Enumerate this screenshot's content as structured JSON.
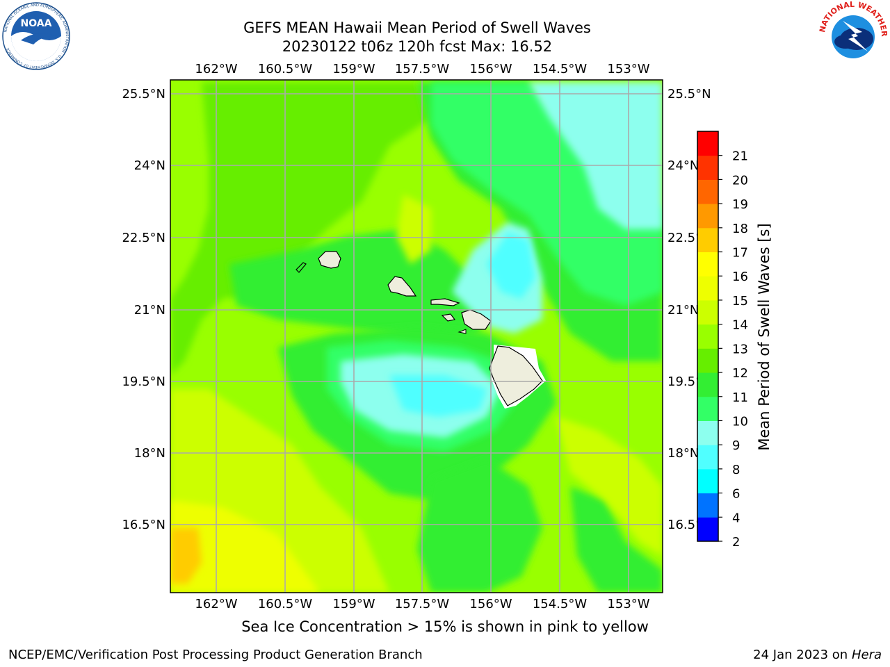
{
  "title": {
    "line1": "GEFS MEAN Hawaii Mean Period of Swell Waves",
    "line2": "20230122 t06z 120h fcst   Max: 16.52"
  },
  "logos": [
    {
      "name": "noaa-logo",
      "text": "NOAA",
      "ring_text": "NATIONAL OCEANIC AND ATMOSPHERIC ADMINISTRATION · U.S. DEPARTMENT OF COMMERCE"
    },
    {
      "name": "nws-logo",
      "ring_text": "NATIONAL WEATHER SERVICE"
    }
  ],
  "map": {
    "lon_labels": [
      "162°W",
      "160.5°W",
      "159°W",
      "157.5°W",
      "156°W",
      "154.5°W",
      "153°W"
    ],
    "lat_labels": [
      "25.5°N",
      "24°N",
      "22.5°N",
      "21°N",
      "19.5°N",
      "18°N",
      "16.5°N"
    ],
    "lon_range": [
      -162.95,
      -152.25
    ],
    "lat_range": [
      15.1,
      25.8
    ],
    "grid": true
  },
  "colorbar": {
    "label": "Mean Period of Swell Waves [s]",
    "ticks": [
      "2",
      "4",
      "6",
      "8",
      "9",
      "10",
      "11",
      "12",
      "13",
      "14",
      "15",
      "16",
      "17",
      "18",
      "19",
      "20",
      "21"
    ],
    "colors": [
      "#0000ff",
      "#0073ff",
      "#00ffff",
      "#50ffff",
      "#8dffee",
      "#33ff66",
      "#33ee33",
      "#66ee00",
      "#99ff00",
      "#ccff00",
      "#eeff00",
      "#ffff00",
      "#ffcc00",
      "#ff9900",
      "#ff6600",
      "#ff3300",
      "#ff0000"
    ]
  },
  "note": "Sea Ice Concentration > 15% is shown in pink to yellow",
  "footer": {
    "left": "NCEP/EMC/Verification Post Processing Product Generation Branch",
    "right_date": "24 Jan 2023 on ",
    "right_host": "Hera"
  }
}
